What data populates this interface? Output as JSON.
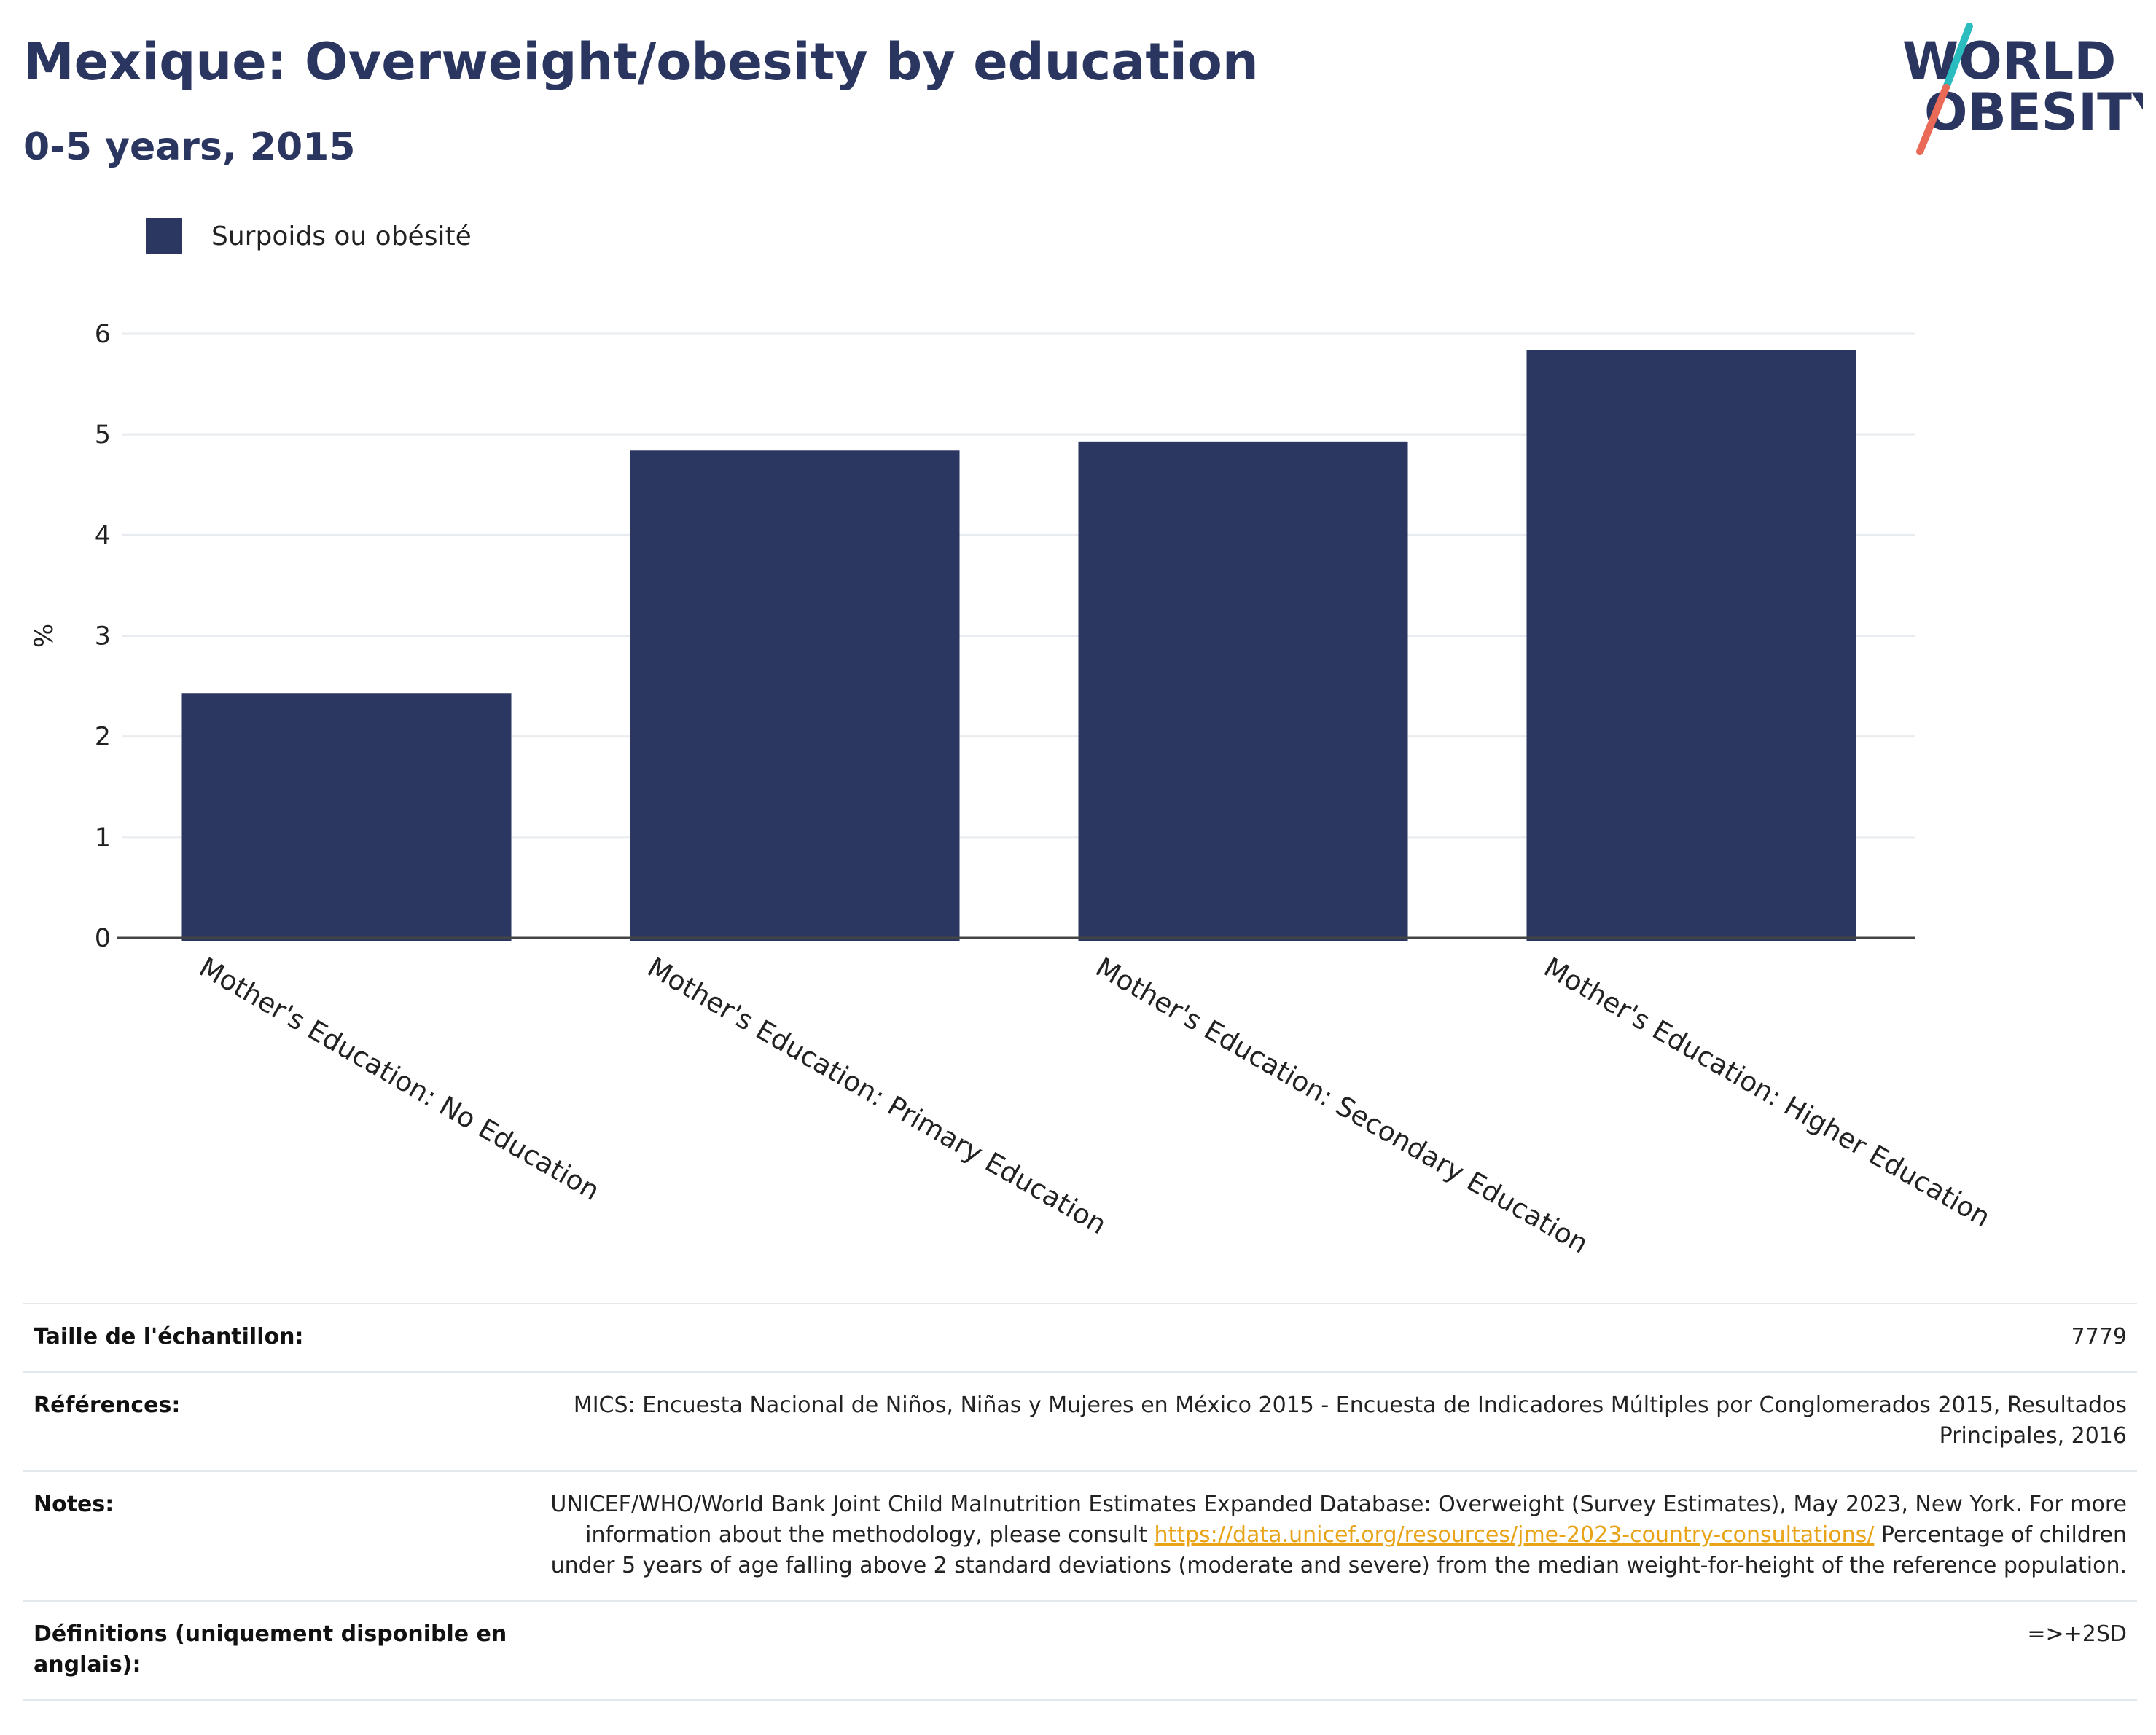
{
  "header": {
    "title": "Mexique: Overweight/obesity by education",
    "subtitle": "0-5 years, 2015"
  },
  "logo": {
    "text_line1": "WORLD",
    "text_line2": "OBESITY",
    "color_text": "#2a3660",
    "color_accent_top": "#2bbcc0",
    "color_accent_bottom": "#e96a57"
  },
  "colors": {
    "bar": "#2b3661",
    "grid": "#e8ecf0",
    "axis": "#444444",
    "link": "#e8a317"
  },
  "chart_data": {
    "type": "bar",
    "categories": [
      "Mother's Education: No Education",
      "Mother's Education: Primary Education",
      "Mother's Education: Secondary Education",
      "Mother's Education: Higher Education"
    ],
    "series": [
      {
        "name": "Surpoids ou obésité",
        "values": [
          2.43,
          4.84,
          4.93,
          5.84
        ]
      }
    ],
    "ylabel": "%",
    "xlabel": "",
    "ylim": [
      0,
      6
    ],
    "yticks": [
      0,
      1,
      2,
      3,
      4,
      5,
      6
    ],
    "grid": true,
    "legend_position": "top-left"
  },
  "info": [
    {
      "key": "Taille de l'échantillon:",
      "value": "7779"
    },
    {
      "key": "Références:",
      "value": "MICS: Encuesta Nacional de Niños, Niñas y Mujeres en México 2015 - Encuesta de Indicadores Múltiples por Conglomerados 2015, Resultados Principales, 2016"
    },
    {
      "key": "Notes:",
      "value_before": "UNICEF/WHO/World Bank Joint Child Malnutrition Estimates Expanded Database: Overweight (Survey Estimates), May 2023, New York. For more information about the methodology, please consult ",
      "link": "https://data.unicef.org/resources/jme-2023-country-consultations/",
      "value_after": " Percentage of children under 5 years of age falling above 2 standard deviations (moderate and severe) from the median weight-for-height of the reference population."
    },
    {
      "key": "Définitions (uniquement disponible en anglais):",
      "value": "=>+2SD"
    }
  ]
}
